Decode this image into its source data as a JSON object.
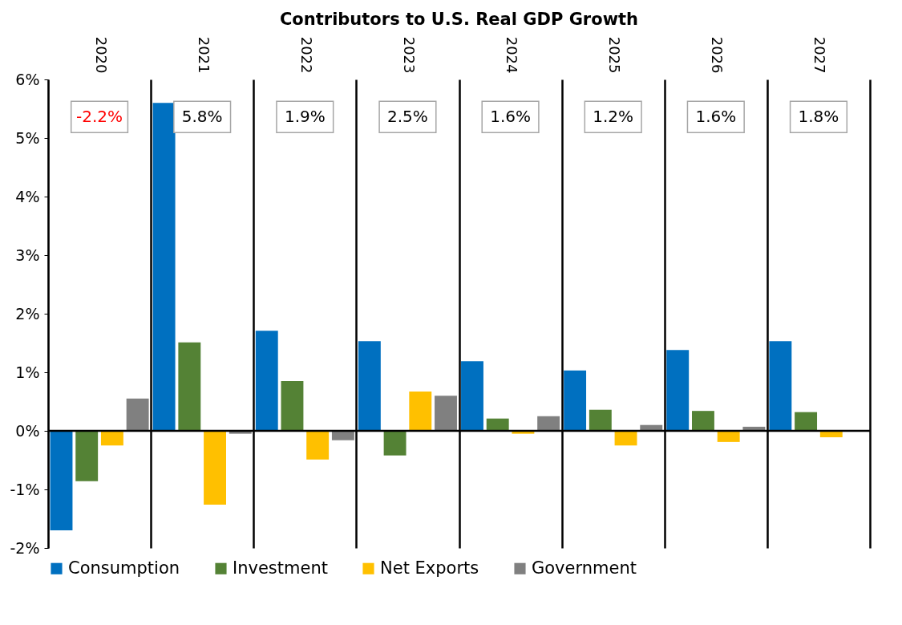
{
  "chart_data": {
    "type": "bar",
    "title": "Contributors to U.S. Real GDP Growth",
    "categories": [
      "2020",
      "2021",
      "2022",
      "2023",
      "2024",
      "2025",
      "2026",
      "2027"
    ],
    "series": [
      {
        "name": "Consumption",
        "color": "#0070c0",
        "values": [
          -1.7,
          5.6,
          1.71,
          1.53,
          1.19,
          1.03,
          1.38,
          1.53
        ]
      },
      {
        "name": "Investment",
        "color": "#548235",
        "values": [
          -0.86,
          1.51,
          0.85,
          -0.42,
          0.21,
          0.36,
          0.34,
          0.32
        ]
      },
      {
        "name": "Net Exports",
        "color": "#ffc000",
        "values": [
          -0.25,
          -1.26,
          -0.49,
          0.67,
          -0.05,
          -0.25,
          -0.19,
          -0.11
        ]
      },
      {
        "name": "Government",
        "color": "#808080",
        "values": [
          0.55,
          -0.05,
          -0.16,
          0.6,
          0.25,
          0.1,
          0.07,
          null
        ]
      }
    ],
    "ylim": [
      -2,
      6
    ],
    "yticks": [
      {
        "value": -2,
        "label": "-2%"
      },
      {
        "value": -1,
        "label": "-1%"
      },
      {
        "value": 0,
        "label": "0%"
      },
      {
        "value": 1,
        "label": "1%"
      },
      {
        "value": 2,
        "label": "2%"
      },
      {
        "value": 3,
        "label": "3%"
      },
      {
        "value": 4,
        "label": "4%"
      },
      {
        "value": 5,
        "label": "5%"
      },
      {
        "value": 6,
        "label": "6%"
      }
    ],
    "annotations": [
      "-2.2%",
      "5.8%",
      "1.9%",
      "2.5%",
      "1.6%",
      "1.2%",
      "1.6%",
      "1.8%"
    ],
    "ref_lines": [
      {
        "axis": "y",
        "value": 0
      }
    ],
    "grid": "x",
    "legend": "bottom"
  }
}
